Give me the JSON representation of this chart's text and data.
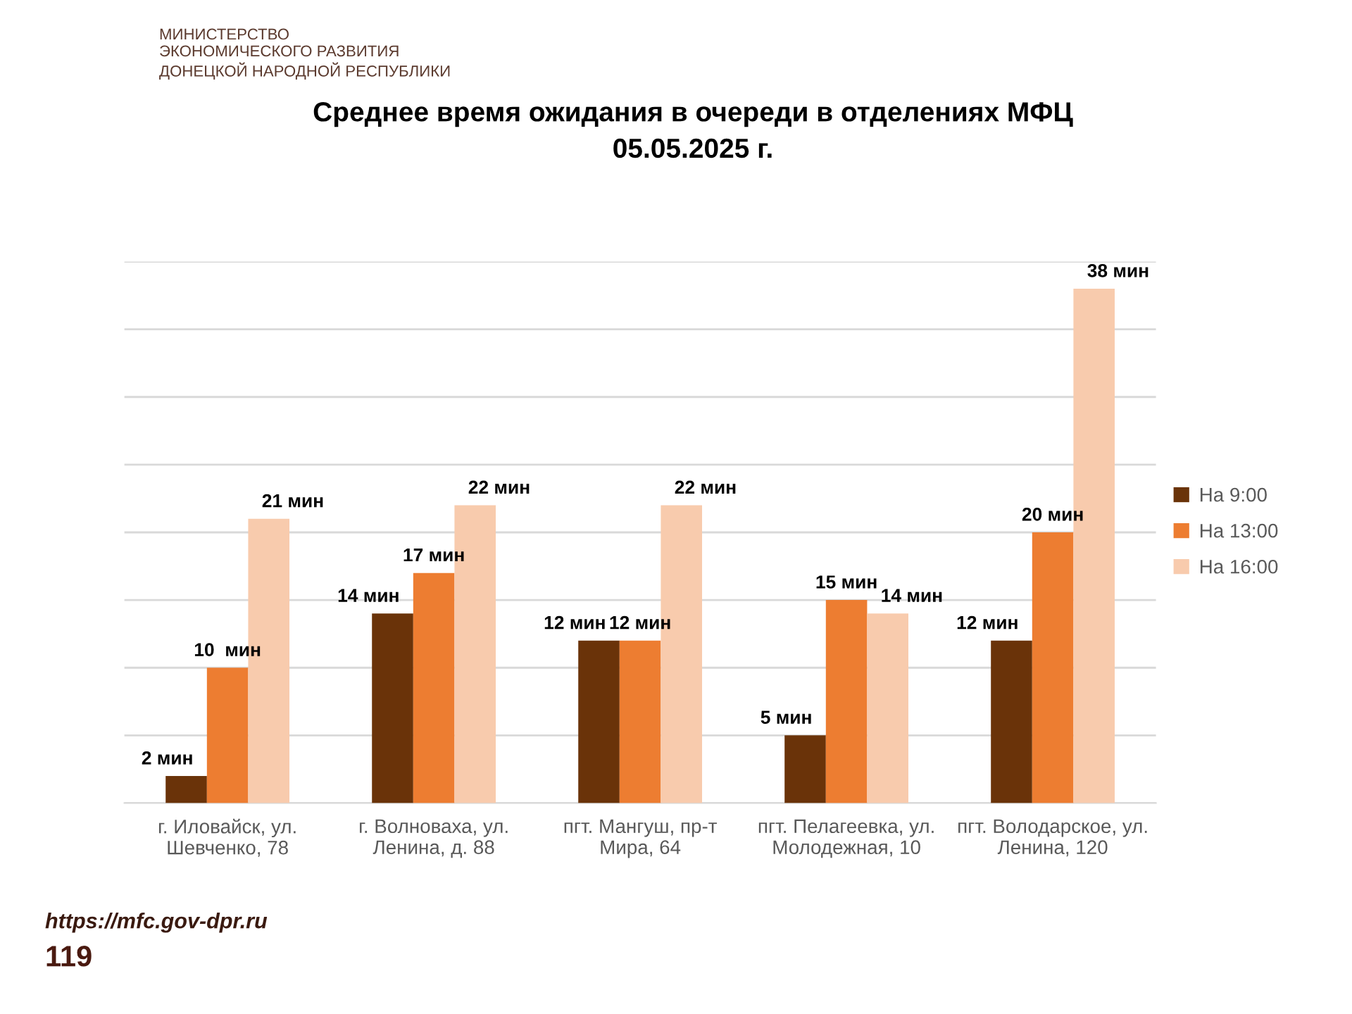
{
  "chart_data": {
    "type": "bar",
    "title": "Среднее время ожидания в очереди в отделениях МФЦ\n05.05.2025 г.",
    "categories": [
      "г. Иловайск, ул.\nШевченко, 78",
      "г. Волноваха, ул.\nЛенина, д. 88",
      "пгт. Мангуш, пр-т\nМира, 64",
      "пгт. Пелагеевка, ул.\nМолодежная, 10",
      "пгт. Володарское, ул.\nЛенина, 120"
    ],
    "series": [
      {
        "name": "На 9:00",
        "color": "#6a3309",
        "values": [
          2,
          14,
          12,
          5,
          12
        ],
        "value_labels": [
          "2 мин",
          "14 мин",
          "12 мин",
          "5 мин",
          "12 мин"
        ]
      },
      {
        "name": "На 13:00",
        "color": "#ed7d31",
        "values": [
          10,
          17,
          12,
          15,
          20
        ],
        "value_labels": [
          "10  мин",
          "17 мин",
          "12 мин",
          "15 мин",
          "20 мин"
        ]
      },
      {
        "name": "На 16:00",
        "color": "#f8cbad",
        "values": [
          21,
          22,
          22,
          14,
          38
        ],
        "value_labels": [
          "21 мин",
          "22 мин",
          "22 мин",
          "14 мин",
          "38 мин"
        ]
      }
    ],
    "ylim": [
      0,
      40
    ],
    "yticks": [
      {
        "value": 0,
        "label": null
      },
      {
        "value": 5,
        "label": null
      },
      {
        "value": 10,
        "label": null
      },
      {
        "value": 15,
        "label": null
      },
      {
        "value": 20,
        "label": null
      },
      {
        "value": 25,
        "label": null
      },
      {
        "value": 30,
        "label": null
      },
      {
        "value": 35,
        "label": null
      },
      {
        "value": 40,
        "label": null
      }
    ],
    "tick_labels": "x",
    "grid": "y",
    "legend": "right",
    "annotations": [
      "МИНИСТЕРСТВО\nЭКОНОМИЧЕСКОГО РАЗВИТИЯ\nДОНЕЦКОЙ НАРОДНОЙ РЕСПУБЛИКИ",
      "https://mfc.gov-dpr.ru",
      "119"
    ]
  }
}
